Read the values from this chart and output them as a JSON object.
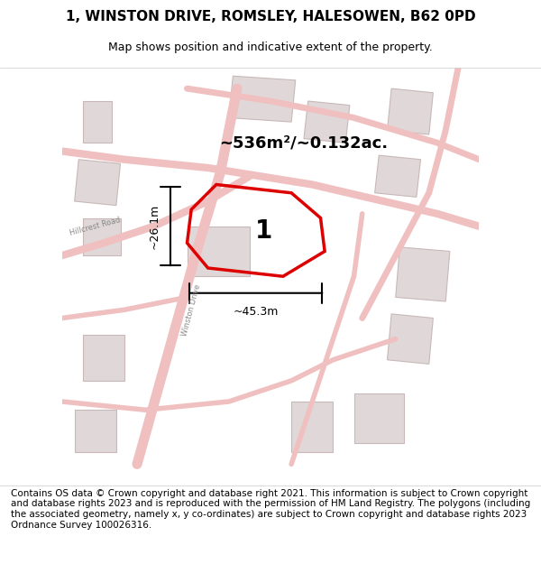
{
  "title_line1": "1, WINSTON DRIVE, ROMSLEY, HALESOWEN, B62 0PD",
  "title_line2": "Map shows position and indicative extent of the property.",
  "footer_text": "Contains OS data © Crown copyright and database right 2021. This information is subject to Crown copyright and database rights 2023 and is reproduced with the permission of HM Land Registry. The polygons (including the associated geometry, namely x, y co-ordinates) are subject to Crown copyright and database rights 2023 Ordnance Survey 100026316.",
  "area_label": "~536m²/~0.132ac.",
  "property_number": "1",
  "dim_vertical": "~26.1m",
  "dim_horizontal": "~45.3m",
  "bg_color": "#f5f0f0",
  "map_bg": "#f5f0f0",
  "road_color": "#e8b8b8",
  "building_fill": "#e0d8d8",
  "building_stroke": "#c8b8b8",
  "red_outline_color": "#dd0000",
  "title_fontsize": 11,
  "subtitle_fontsize": 9,
  "footer_fontsize": 7.5,
  "road_label": "Winston Drive",
  "hillcrest_label": "Hillcrest Road"
}
